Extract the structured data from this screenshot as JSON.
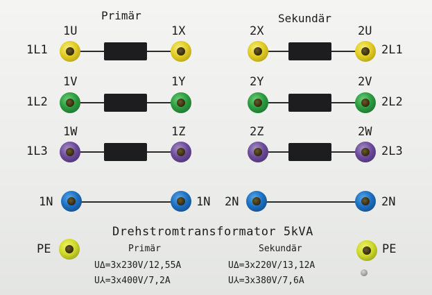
{
  "headers": {
    "primary": "Primär",
    "secondary": "Sekundär"
  },
  "terminals": {
    "1U": "1U",
    "1X": "1X",
    "2X": "2X",
    "2U": "2U",
    "1V": "1V",
    "1Y": "1Y",
    "2Y": "2Y",
    "2V": "2V",
    "1W": "1W",
    "1Z": "1Z",
    "2Z": "2Z",
    "2W": "2W"
  },
  "lines": {
    "1L1": "1L1",
    "1L2": "1L2",
    "1L3": "1L3",
    "2L1": "2L1",
    "2L2": "2L2",
    "2L3": "2L3",
    "1N_left": "1N",
    "1N_right": "1N",
    "2N_left": "2N",
    "2N_right": "2N",
    "PE_left": "PE",
    "PE_right": "PE"
  },
  "jack_colors": {
    "L1": "#e1cc22",
    "L2": "#2b9b3f",
    "L3": "#6c4a99",
    "N": "#1d6fc0",
    "PE": "#cfd92a"
  },
  "nameplate": {
    "title": "Drehstromtransformator 5kVA",
    "primary_label": "Primär",
    "secondary_label": "Sekundär",
    "primary_delta": "UΔ=3x230V/12,55A",
    "primary_star": "U⅄=3x400V/7,2A",
    "secondary_delta": "UΔ=3x220V/13,12A",
    "secondary_star": "U⅄=3x380V/7,6A"
  }
}
